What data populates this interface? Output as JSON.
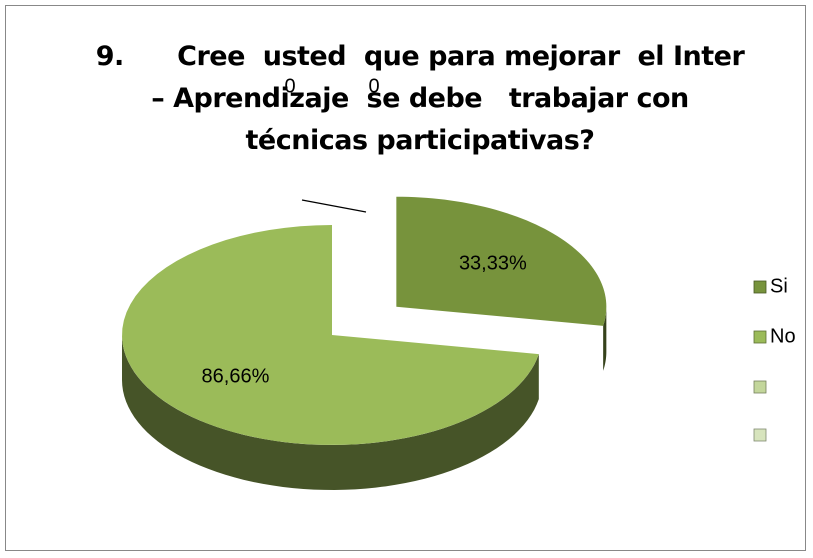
{
  "chart_data": {
    "type": "pie3d",
    "title": "9.      Cree  usted  que para mejorar  el Inter – Aprendizaje  se debe   trabajar con  técnicas participativas?",
    "categories": [
      "Si",
      "No",
      null,
      null
    ],
    "values": [
      33.33,
      86.66,
      0,
      0
    ],
    "value_labels": [
      "33,33%",
      "86,66%",
      "0",
      "0"
    ],
    "colors": [
      "#77933c",
      "#9bbb59",
      "#c3d69b",
      "#d7e4bd"
    ],
    "legend": "right"
  }
}
